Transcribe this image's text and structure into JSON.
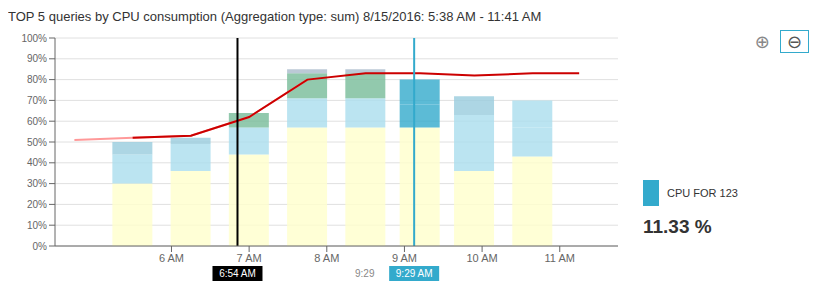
{
  "chart_data": {
    "type": "bar",
    "title": "TOP 5 queries by CPU consumption (Aggregation type: sum) 8/15/2016: 5:38 AM - 11:41 AM",
    "stacked": true,
    "grid": true,
    "series": [
      {
        "type": "bar",
        "x": [
          0.0,
          1.5,
          3.0,
          4.5,
          6.0,
          7.4,
          8.8,
          10.3
        ],
        "values": [
          30,
          36,
          44,
          57,
          57,
          57,
          36,
          43
        ],
        "colors": [
          "#ffffcc",
          "#ffffcc",
          "#ffffcc",
          "#ffffcc",
          "#ffffcc",
          "#ffffcc",
          "#ffffcc",
          "#ffffcc"
        ]
      },
      {
        "type": "bar",
        "x": [
          0.0,
          1.5,
          3.0,
          4.5,
          6.0,
          7.4,
          8.8,
          10.3
        ],
        "values": [
          14,
          13,
          13,
          14,
          14,
          11,
          14,
          14
        ],
        "colors": [
          "#aaddee",
          "#aaddee",
          "#aaddee",
          "#aaddee",
          "#aaddee",
          "#33aacc",
          "#aaddee",
          "#aaddee"
        ]
      },
      {
        "type": "bar",
        "x": [
          0.0,
          1.5,
          3.0,
          4.5,
          6.0,
          7.4,
          8.8,
          10.3
        ],
        "values": [
          6,
          3,
          7,
          12,
          12,
          12,
          13,
          13
        ],
        "colors": [
          "#99ccdd",
          "#99ccdd",
          "#77bb99",
          "#77bb99",
          "#77bb99",
          "#33aacc",
          "#aaddee",
          "#aaddee"
        ]
      },
      {
        "type": "bar",
        "x": [
          0.0,
          1.5,
          3.0,
          4.5,
          6.0,
          7.4,
          8.8,
          10.3
        ],
        "values": [
          null,
          null,
          null,
          2,
          2,
          null,
          9,
          null
        ],
        "colors": [
          null,
          null,
          null,
          "#aabbcc",
          "#aabbcc",
          null,
          "#99ccdd",
          null
        ]
      },
      {
        "type": "line",
        "color": "#ff9999",
        "x": [
          -1.5,
          0.0,
          1.5,
          3.0,
          4.5
        ],
        "values": [
          51,
          52,
          53,
          62,
          80
        ]
      },
      {
        "type": "line",
        "color": "#cc0000",
        "x": [
          0.0,
          1.5,
          3.0,
          4.5,
          6.0,
          7.4,
          8.8,
          10.3,
          11.5
        ],
        "values": [
          52,
          53,
          62,
          80,
          83,
          83,
          82,
          83,
          83
        ]
      }
    ],
    "xlim": [
      -2.0,
      12.5
    ],
    "xticks": [
      {
        "value": 1,
        "label": "6 AM"
      },
      {
        "value": 3,
        "label": "7 AM"
      },
      {
        "value": 5,
        "label": "8 AM"
      },
      {
        "value": 7,
        "label": "9 AM"
      },
      {
        "value": 9,
        "label": "10 AM"
      },
      {
        "value": 11,
        "label": "11 AM"
      }
    ],
    "ylim": [
      0,
      100
    ],
    "yticks": [
      {
        "value": 0,
        "label": "0%"
      },
      {
        "value": 10,
        "label": "10%"
      },
      {
        "value": 20,
        "label": "20%"
      },
      {
        "value": 30,
        "label": "30%"
      },
      {
        "value": 40,
        "label": "40%"
      },
      {
        "value": 50,
        "label": "50%"
      },
      {
        "value": 60,
        "label": "60%"
      },
      {
        "value": 70,
        "label": "70%"
      },
      {
        "value": 80,
        "label": "80%"
      },
      {
        "value": 90,
        "label": "90%"
      },
      {
        "value": 100,
        "label": "100%"
      }
    ],
    "reference_lines": [
      {
        "x": 2.7,
        "label": "6:54 AM",
        "color": "#000000"
      },
      {
        "x": 7.25,
        "label": "9:29 AM",
        "color": "#33aacc"
      }
    ],
    "annotations": [
      {
        "text": "9:29",
        "x": 6.95
      },
      {
        "text": "CPU FOR 123",
        "color": "#33aacc"
      },
      {
        "text": "11.33 %"
      },
      {
        "text": "⊕"
      },
      {
        "text": "⊖",
        "color": "#33aacc"
      }
    ]
  }
}
